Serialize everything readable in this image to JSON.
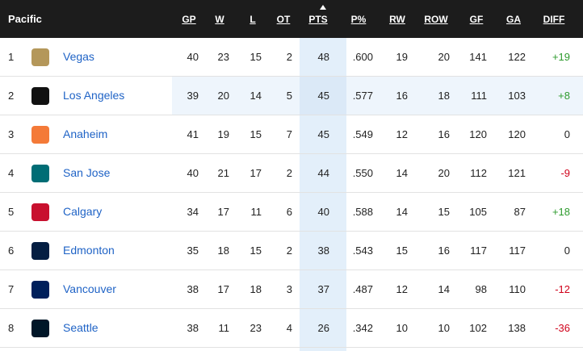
{
  "header": {
    "title": "Pacific",
    "columns": [
      "GP",
      "W",
      "L",
      "OT",
      "PTS",
      "P%",
      "RW",
      "ROW",
      "GF",
      "GA",
      "DIFF"
    ]
  },
  "table": {
    "rows": [
      {
        "rank": "1",
        "team": "Vegas",
        "cells": [
          "40",
          "23",
          "15",
          "2",
          "48",
          ".600",
          "19",
          "20",
          "141",
          "122",
          "+19"
        ]
      },
      {
        "rank": "2",
        "team": "Los Angeles",
        "cells": [
          "39",
          "20",
          "14",
          "5",
          "45",
          ".577",
          "16",
          "18",
          "111",
          "103",
          "+8"
        ]
      },
      {
        "rank": "3",
        "team": "Anaheim",
        "cells": [
          "41",
          "19",
          "15",
          "7",
          "45",
          ".549",
          "12",
          "16",
          "120",
          "120",
          "0"
        ]
      },
      {
        "rank": "4",
        "team": "San Jose",
        "cells": [
          "40",
          "21",
          "17",
          "2",
          "44",
          ".550",
          "14",
          "20",
          "112",
          "121",
          "-9"
        ]
      },
      {
        "rank": "5",
        "team": "Calgary",
        "cells": [
          "34",
          "17",
          "11",
          "6",
          "40",
          ".588",
          "14",
          "15",
          "105",
          "87",
          "+18"
        ]
      },
      {
        "rank": "6",
        "team": "Edmonton",
        "cells": [
          "35",
          "18",
          "15",
          "2",
          "38",
          ".543",
          "15",
          "16",
          "117",
          "117",
          "0"
        ]
      },
      {
        "rank": "7",
        "team": "Vancouver",
        "cells": [
          "38",
          "17",
          "18",
          "3",
          "37",
          ".487",
          "12",
          "14",
          "98",
          "110",
          "-12"
        ]
      },
      {
        "rank": "8",
        "team": "Seattle",
        "cells": [
          "38",
          "11",
          "23",
          "4",
          "26",
          ".342",
          "10",
          "10",
          "102",
          "138",
          "-36"
        ]
      }
    ]
  }
}
